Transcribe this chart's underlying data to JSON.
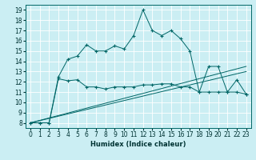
{
  "xlabel": "Humidex (Indice chaleur)",
  "background_color": "#cbeef3",
  "grid_color": "#ffffff",
  "line_color": "#006666",
  "xlim": [
    -0.5,
    23.5
  ],
  "ylim": [
    7.5,
    19.5
  ],
  "xticks": [
    0,
    1,
    2,
    3,
    4,
    5,
    6,
    7,
    8,
    9,
    10,
    11,
    12,
    13,
    14,
    15,
    16,
    17,
    18,
    19,
    20,
    21,
    22,
    23
  ],
  "yticks": [
    8,
    9,
    10,
    11,
    12,
    13,
    14,
    15,
    16,
    17,
    18,
    19
  ],
  "series1_x": [
    0,
    1,
    2,
    3,
    4,
    5,
    6,
    7,
    8,
    9,
    10,
    11,
    12,
    13,
    14,
    15,
    16,
    17,
    18,
    19,
    20,
    21,
    22,
    23
  ],
  "series1_y": [
    8.0,
    8.0,
    8.0,
    12.5,
    14.2,
    14.5,
    15.6,
    15.0,
    15.0,
    15.5,
    15.2,
    16.5,
    19.0,
    17.0,
    16.5,
    17.0,
    16.2,
    15.0,
    11.0,
    13.5,
    13.5,
    11.0,
    12.2,
    10.8
  ],
  "series2_x": [
    0,
    1,
    2,
    3,
    4,
    5,
    6,
    7,
    8,
    9,
    10,
    11,
    12,
    13,
    14,
    15,
    16,
    17,
    18,
    19,
    20,
    21,
    22,
    23
  ],
  "series2_y": [
    8.0,
    8.0,
    8.0,
    12.3,
    12.1,
    12.2,
    11.5,
    11.5,
    11.3,
    11.5,
    11.5,
    11.5,
    11.7,
    11.7,
    11.8,
    11.8,
    11.5,
    11.5,
    11.0,
    11.0,
    11.0,
    11.0,
    11.0,
    10.8
  ],
  "series3_x": [
    0,
    23
  ],
  "series3_y": [
    8.0,
    13.5
  ],
  "series4_x": [
    0,
    23
  ],
  "series4_y": [
    8.0,
    13.0
  ]
}
